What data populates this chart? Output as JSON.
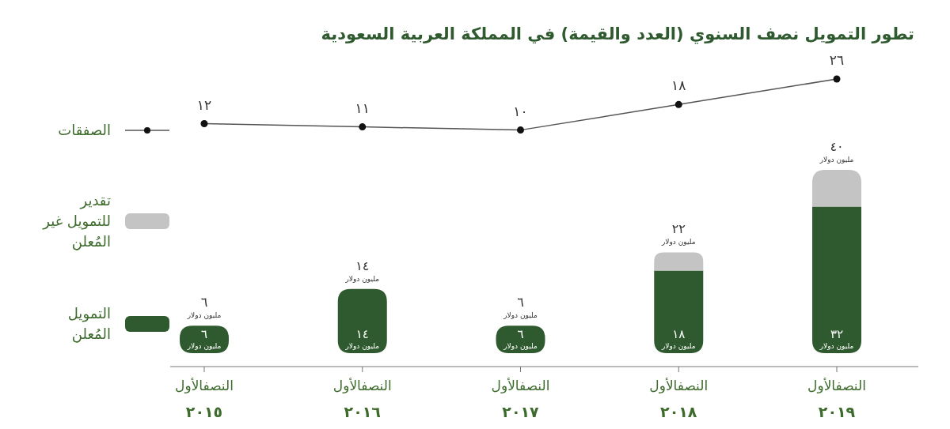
{
  "chart_data": [
    {
      "type": "line",
      "title": "تطور التمويل نصف السنوي (العدد والقيمة) في المملكة العربية السعودية",
      "categories": [
        null,
        null,
        null,
        null,
        null
      ],
      "legend": "left",
      "series": [
        {
          "name": "الصفقات",
          "color": "#555555",
          "marker": "circle",
          "values": [
            12,
            11,
            10,
            18,
            26
          ],
          "value_labels": [
            "١٢",
            "١١",
            "١٠",
            "١٨",
            "٢٦"
          ]
        }
      ]
    },
    {
      "type": "bar",
      "categories": [
        "النصفالأول\n٢٠١٥",
        "النصفالأول\n٢٠١٦",
        "النصفالأول\n٢٠١٧",
        "النصفالأول\n٢٠١٨",
        "النصفالأول\n٢٠١٩"
      ],
      "stacked": true,
      "legend": "left",
      "series": [
        {
          "name": "التمويل المُعلن",
          "color": "#2f5a2f",
          "values": [
            6,
            14,
            6,
            18,
            32
          ],
          "value_labels": [
            "٦\nمليون دولار",
            "١٤\nمليون دولار",
            "٦\nمليون دولار",
            "١٨\nمليون دولار",
            "٣٢\nمليون دولار"
          ]
        },
        {
          "name": "تقدير للتمويل غير المُعلن",
          "color": "#c4c4c4",
          "values": [
            0,
            0,
            0,
            4,
            8
          ]
        }
      ],
      "totals": [
        "٦\nمليون دولار",
        "١٤\nمليون دولار",
        "٦\nمليون دولار",
        "٢٢\nمليون دولار",
        "٤٠\nمليون دولار"
      ]
    }
  ]
}
